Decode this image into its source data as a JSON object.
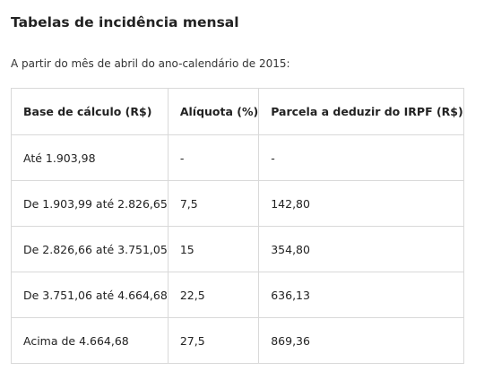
{
  "title": "Tabelas de incidência mensal",
  "intro": "A partir do mês de abril do ano-calendário de 2015:",
  "table": {
    "headers": [
      "Base de cálculo (R$)",
      "Alíquota (%)",
      "Parcela a deduzir do IRPF (R$)"
    ],
    "rows": [
      [
        "Até 1.903,98",
        "-",
        "-"
      ],
      [
        "De 1.903,99 até 2.826,65",
        "7,5",
        "142,80"
      ],
      [
        "De 2.826,66 até 3.751,05",
        "15",
        "354,80"
      ],
      [
        "De 3.751,06 até 4.664,68",
        "22,5",
        "636,13"
      ],
      [
        "Acima de 4.664,68",
        "27,5",
        "869,36"
      ]
    ]
  }
}
